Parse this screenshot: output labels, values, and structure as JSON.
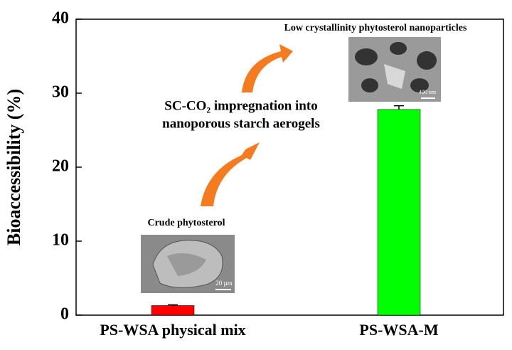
{
  "chart_data": {
    "type": "bar",
    "categories": [
      "PS-WSA physical mix",
      "PS-WSA-M"
    ],
    "values": [
      1.3,
      27.8
    ],
    "errors": [
      0.1,
      0.5
    ],
    "colors": [
      "#ff0000",
      "#00ff00"
    ],
    "y_label": "Bioaccessibility (%)",
    "ylim": [
      0,
      40
    ],
    "yticks": [
      0,
      10,
      20,
      30,
      40
    ],
    "annotations": {
      "crude": "Crude phytosterol",
      "nano": "Low crystallinity phytosterol nanoparticles",
      "process_line1": "SC-CO₂ impregnation into",
      "process_line2": "nanoporous starch aerogels",
      "scale_crude": "20 µm",
      "scale_nano": "400 nm"
    }
  }
}
